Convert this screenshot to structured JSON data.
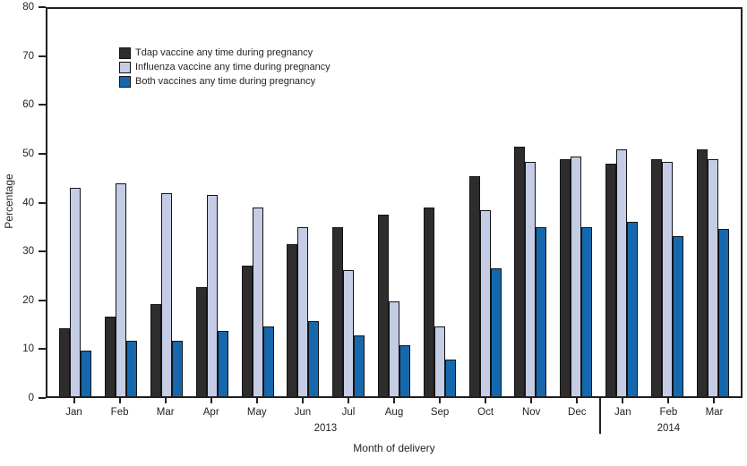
{
  "colors": {
    "tdap": "#2e2c2d",
    "influenza": "#c5cde6",
    "both": "#1568ad",
    "axis": "#231f20",
    "bar_outline": "#141414",
    "background": "#ffffff"
  },
  "axis_titles": {
    "y": "Percentage",
    "x": "Month of delivery"
  },
  "chart_data": {
    "type": "bar",
    "title": "",
    "xlabel": "Month of delivery",
    "ylabel": "Percentage",
    "ylim": [
      0,
      80
    ],
    "yticks": [
      0,
      10,
      20,
      30,
      40,
      50,
      60,
      70,
      80
    ],
    "grid": false,
    "legend_position": "top-left-inside",
    "categories": [
      "Jan",
      "Feb",
      "Mar",
      "Apr",
      "May",
      "Jun",
      "Jul",
      "Aug",
      "Sep",
      "Oct",
      "Nov",
      "Dec",
      "Jan",
      "Feb",
      "Mar"
    ],
    "year_groups": [
      {
        "label": "2013",
        "start_index": 0,
        "end_index": 11
      },
      {
        "label": "2014",
        "start_index": 12,
        "end_index": 14
      }
    ],
    "series": [
      {
        "name": "Tdap vaccine any time during pregnancy",
        "color_key": "tdap",
        "values": [
          14,
          16.5,
          19,
          22.5,
          27,
          31.5,
          35,
          37.5,
          39,
          45.5,
          51.5,
          49,
          48,
          49,
          51
        ]
      },
      {
        "name": "Influenza vaccine any time during pregnancy",
        "color_key": "influenza",
        "values": [
          43,
          44,
          42,
          41.5,
          39,
          35,
          26,
          19.5,
          14.5,
          38.5,
          48.5,
          49.5,
          51,
          48.5,
          49
        ]
      },
      {
        "name": "Both vaccines any time during pregnancy",
        "color_key": "both",
        "values": [
          9.5,
          11.5,
          11.5,
          13.5,
          14.5,
          15.5,
          12.5,
          10.5,
          7.5,
          26.5,
          35,
          35,
          36,
          33,
          34.5
        ]
      }
    ]
  }
}
